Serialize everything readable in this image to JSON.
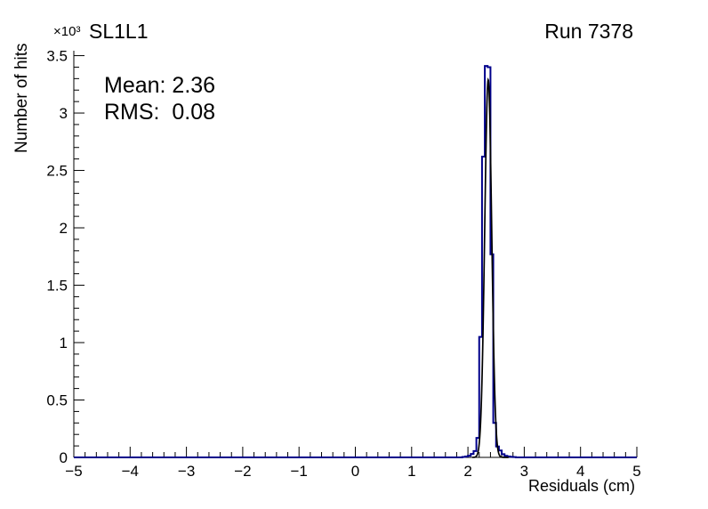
{
  "header": {
    "title": "SL1L1",
    "run": "Run 7378"
  },
  "stats": {
    "mean": "Mean: 2.36",
    "rms": "RMS:  0.08"
  },
  "chart_data": {
    "type": "bar",
    "subtype": "histogram",
    "title": "SL1L1",
    "annotation": "Run 7378",
    "xlabel": "Residuals (cm)",
    "ylabel": "Number of hits",
    "y_scale_label": "×10³",
    "xlim": [
      -5,
      5
    ],
    "ylim": [
      0,
      3543
    ],
    "grid": false,
    "legend": false,
    "x_major_ticks": [
      -5,
      -4,
      -3,
      -2,
      -1,
      0,
      1,
      2,
      3,
      4,
      5
    ],
    "x_tick_labels": [
      "−5",
      "−4",
      "−3",
      "−2",
      "−1",
      "0",
      "1",
      "2",
      "3",
      "4",
      "5"
    ],
    "x_minor_step": 0.2,
    "y_major_ticks": [
      0,
      500,
      1000,
      1500,
      2000,
      2500,
      3000,
      3500
    ],
    "y_tick_labels": [
      "0",
      "0.5",
      "1",
      "1.5",
      "2",
      "2.5",
      "3",
      "3.5"
    ],
    "y_minor_step": 100,
    "bin_width": 0.05,
    "bin_left_edges": [
      1.9,
      1.95,
      2.0,
      2.05,
      2.1,
      2.15,
      2.2,
      2.25,
      2.3,
      2.35,
      2.4,
      2.45,
      2.5,
      2.55,
      2.6,
      2.65,
      2.7,
      2.75,
      2.8
    ],
    "counts": [
      4,
      8,
      15,
      30,
      55,
      170,
      1050,
      2620,
      3410,
      3400,
      1770,
      300,
      95,
      60,
      28,
      14,
      8,
      5,
      3
    ],
    "fit": {
      "type": "gaussian",
      "mean": 2.36,
      "sigma": 0.062,
      "amplitude": 3290,
      "range": [
        2.08,
        2.72
      ]
    },
    "stats": {
      "mean": 2.36,
      "rms": 0.08
    },
    "colors": {
      "histogram": "#00008b",
      "fit": "#000000",
      "axis": "#000000"
    }
  }
}
